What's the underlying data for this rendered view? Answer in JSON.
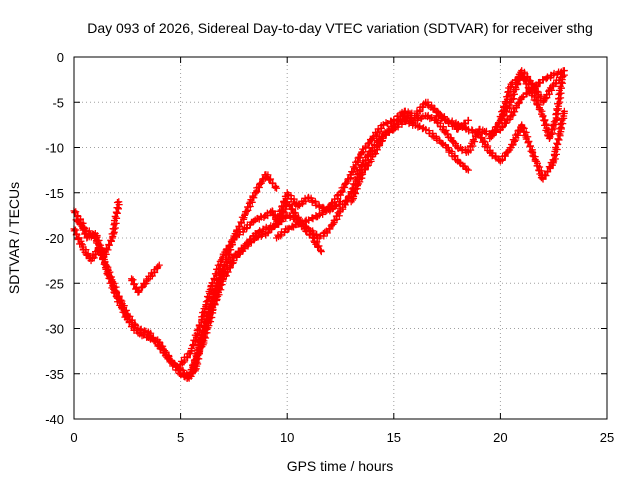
{
  "chart_data": {
    "type": "scatter",
    "title": "Day 093 of 2026, Sidereal Day-to-day VTEC variation (SDTVAR) for receiver sthg",
    "xlabel": "GPS time / hours",
    "ylabel": "SDTVAR / TECUs",
    "xlim": [
      0,
      25
    ],
    "ylim": [
      -40,
      0
    ],
    "xticks": [
      0,
      5,
      10,
      15,
      20,
      25
    ],
    "yticks": [
      0,
      -5,
      -10,
      -15,
      -20,
      -25,
      -30,
      -35,
      -40
    ],
    "grid": true,
    "marker": "+",
    "color": "#ff0000",
    "series": [
      {
        "x": [
          0.0,
          0.3,
          0.6,
          1.0,
          1.4,
          1.8,
          2.1
        ],
        "y": [
          -17,
          -18,
          -20,
          -19.5,
          -22,
          -20,
          -16
        ]
      },
      {
        "x": [
          0.0,
          0.4,
          0.8,
          1.2,
          1.6,
          2.0,
          2.5,
          3.0,
          3.5,
          4.0,
          4.5,
          5.0,
          5.3,
          5.7,
          6.0
        ],
        "y": [
          -19,
          -21,
          -22.5,
          -21,
          -24,
          -26.5,
          -29,
          -30.5,
          -31,
          -31.5,
          -33.5,
          -35,
          -35.5,
          -34.5,
          -31
        ]
      },
      {
        "x": [
          0.1,
          0.5,
          1.0,
          1.5,
          2.0,
          2.5,
          3.0,
          3.5,
          4.0,
          4.5,
          5.0,
          5.4,
          5.8,
          6.2,
          6.6,
          7.0,
          7.5,
          8.0,
          8.5,
          9.0,
          9.5,
          10.0,
          10.5,
          11.0,
          11.5,
          12.0,
          12.5,
          13.0,
          13.5,
          14.0,
          14.5,
          15.0,
          15.5,
          16.0,
          16.5,
          17.0,
          17.5,
          18.0,
          18.5
        ],
        "y": [
          -18,
          -19,
          -20,
          -23,
          -26,
          -28.5,
          -30,
          -30.5,
          -32,
          -33.5,
          -34.5,
          -35.5,
          -33,
          -29,
          -26,
          -23.5,
          -22,
          -21,
          -19.5,
          -19,
          -18.5,
          -17.5,
          -18,
          -19,
          -20,
          -19,
          -17,
          -15,
          -12,
          -10,
          -8.5,
          -8,
          -7,
          -7.5,
          -8,
          -9,
          -10,
          -11.5,
          -12.5
        ]
      },
      {
        "x": [
          2.7,
          3.0,
          3.5,
          4.0
        ],
        "y": [
          -24.5,
          -26,
          -24.5,
          -23
        ]
      },
      {
        "x": [
          5.0,
          5.5,
          6.0,
          6.5,
          7.0,
          7.5,
          8.0,
          8.5,
          9.0,
          9.3,
          9.6,
          10.0,
          10.4,
          10.8,
          11.2,
          11.6
        ],
        "y": [
          -34,
          -32.5,
          -29,
          -25,
          -22,
          -20,
          -19,
          -18,
          -17.5,
          -17,
          -18.5,
          -16,
          -17.5,
          -19,
          -20,
          -21.5
        ]
      },
      {
        "x": [
          5.5,
          6.0,
          6.5,
          7.0,
          7.5,
          8.0,
          8.5,
          9.0,
          9.5
        ],
        "y": [
          -35,
          -31,
          -27,
          -23.5,
          -20,
          -17.5,
          -15,
          -13,
          -14.5
        ]
      },
      {
        "x": [
          6.0,
          6.5,
          7.0,
          7.5,
          8.0,
          8.5,
          9.0,
          9.5,
          10.0,
          10.5,
          11.0,
          11.5,
          12.0,
          12.5
        ],
        "y": [
          -32,
          -28,
          -24.5,
          -22.5,
          -21,
          -20,
          -19.5,
          -18.5,
          -15,
          -16.5,
          -15.5,
          -16.5,
          -17,
          -16
        ]
      },
      {
        "x": [
          9.5,
          10.0,
          10.5,
          11.0,
          11.5,
          12.0,
          12.5,
          13.0,
          13.5,
          14.0,
          14.5,
          15.0,
          15.5,
          16.0,
          16.5,
          17.0,
          17.5,
          18.0,
          18.5
        ],
        "y": [
          -20,
          -19,
          -18.5,
          -18,
          -17.5,
          -16.5,
          -15,
          -13,
          -10.5,
          -9,
          -7.5,
          -7,
          -6,
          -6.5,
          -5,
          -6,
          -7,
          -8,
          -7
        ]
      },
      {
        "x": [
          13.0,
          13.5,
          14.0,
          14.5,
          15.0,
          15.5,
          16.0,
          16.5,
          17.0,
          17.5,
          18.0,
          18.5,
          19.0,
          19.5,
          20.0,
          20.5,
          21.0,
          21.5,
          22.0,
          22.5,
          23.0
        ],
        "y": [
          -16,
          -13,
          -11,
          -9,
          -7.5,
          -6.5,
          -7,
          -6.5,
          -7,
          -8.5,
          -10,
          -10.5,
          -8,
          -8.5,
          -8,
          -6.5,
          -4.5,
          -3.5,
          -2.5,
          -2,
          -1.5
        ]
      },
      {
        "x": [
          17.0,
          17.5,
          18.0,
          18.5,
          19.0,
          19.5,
          20.0,
          20.5,
          21.0,
          21.5,
          22.0,
          22.5,
          23.0
        ],
        "y": [
          -6.5,
          -7,
          -7.5,
          -8,
          -8.5,
          -10.5,
          -11.5,
          -10,
          -7.5,
          -10.5,
          -13.5,
          -11.5,
          -6
        ]
      },
      {
        "x": [
          19.5,
          20.0,
          20.5,
          21.0,
          21.5,
          22.0,
          22.5,
          23.0
        ],
        "y": [
          -9,
          -7,
          -5,
          -1.5,
          -3,
          -5,
          -3,
          -2
        ]
      },
      {
        "x": [
          20.0,
          20.5,
          21.0,
          21.5,
          22.0,
          22.3,
          22.6,
          22.9
        ],
        "y": [
          -7,
          -3,
          -2,
          -4,
          -6.5,
          -9,
          -7,
          -2.5
        ]
      }
    ]
  }
}
